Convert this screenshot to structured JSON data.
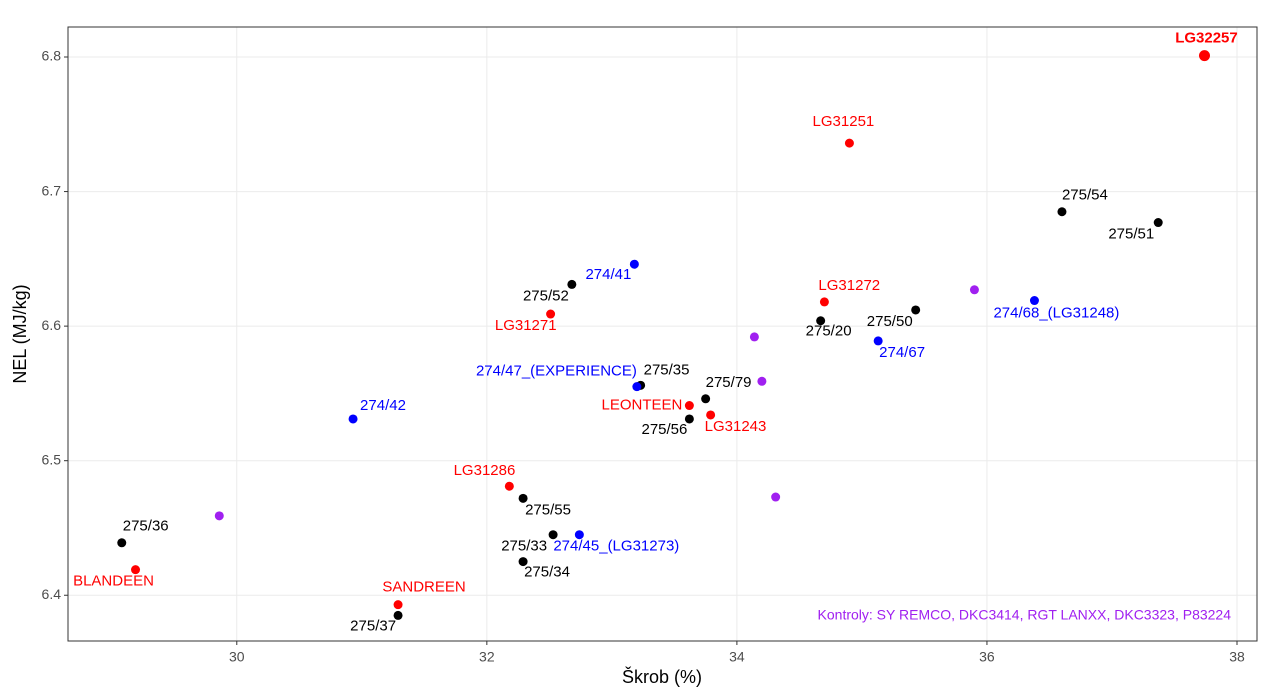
{
  "chart_data": {
    "type": "scatter",
    "xlabel": "Škrob (%)",
    "ylabel": "NEL (MJ/kg)",
    "xlim": [
      28.65,
      38.16
    ],
    "ylim": [
      6.366,
      6.8223
    ],
    "xticks": [
      30,
      32,
      34,
      36,
      38
    ],
    "yticks": [
      6.4,
      6.5,
      6.6,
      6.7,
      6.8
    ],
    "grid": true,
    "annotation": "Kontroly: SY REMCO, DKC3414, RGT LANXX, DKC3323, P83224",
    "annotation_color": "#a020f0",
    "series": [
      {
        "color": "#000000",
        "labels": [
          "275/36",
          "275/37",
          "275/33",
          "275/34",
          "275/55",
          "275/52",
          "275/35",
          "275/56",
          "275/79",
          "275/20",
          "275/50",
          "275/54",
          "275/51"
        ],
        "x": [
          29.08,
          31.29,
          32.53,
          32.29,
          32.29,
          32.68,
          33.23,
          33.62,
          33.75,
          34.67,
          35.43,
          36.6,
          37.37
        ],
        "values": [
          6.439,
          6.385,
          6.445,
          6.425,
          6.472,
          6.631,
          6.556,
          6.531,
          6.546,
          6.604,
          6.612,
          6.685,
          6.677
        ]
      },
      {
        "color": "#ff0000",
        "labels": [
          "LG32257",
          "LG31251",
          "LG31272",
          "LG31271",
          "LEONTEEN",
          "LG31243",
          "LG31286",
          "BLANDEEN",
          "SANDREEN"
        ],
        "x": [
          37.74,
          34.9,
          34.7,
          32.51,
          33.62,
          33.79,
          32.18,
          29.19,
          31.29
        ],
        "values": [
          6.801,
          6.736,
          6.618,
          6.609,
          6.541,
          6.534,
          6.481,
          6.419,
          6.393
        ]
      },
      {
        "color": "#0000ff",
        "labels": [
          "274/41",
          "274/47_(EXPERIENCE)",
          "274/42",
          "274/45_(LG31273)",
          "274/68_(LG31248)",
          "274/67"
        ],
        "x": [
          33.18,
          33.2,
          30.93,
          32.74,
          36.38,
          35.13
        ],
        "values": [
          6.646,
          6.555,
          6.531,
          6.445,
          6.619,
          6.589
        ]
      },
      {
        "color": "#a020f0",
        "x": [
          29.86,
          34.14,
          34.2,
          34.31,
          35.9
        ],
        "values": [
          6.459,
          6.592,
          6.559,
          6.473,
          6.627
        ]
      }
    ]
  }
}
